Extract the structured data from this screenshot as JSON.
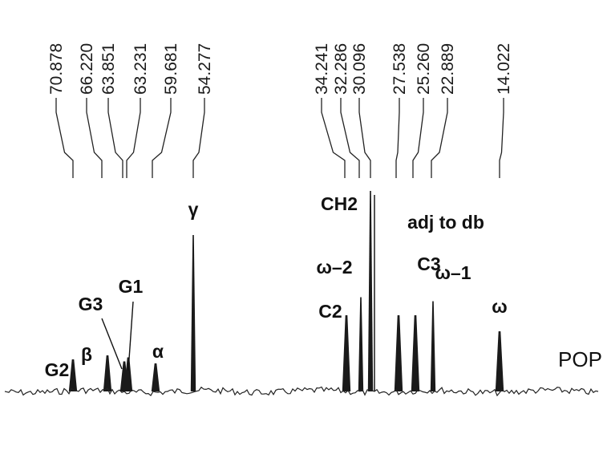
{
  "chart_data": {
    "type": "line",
    "subtype": "13C NMR spectrum (stick/peak plot)",
    "title": "",
    "xlabel": "",
    "ylabel": "",
    "x_direction": "decreasing (downfield left, upfield right)",
    "sample_label": "POP",
    "peaks": [
      {
        "label": "G2",
        "shift": 70.878,
        "intensity": 0.16
      },
      {
        "label": "β",
        "shift": 66.22,
        "intensity": 0.18
      },
      {
        "label": "G3",
        "shift": 63.851,
        "intensity": 0.15
      },
      {
        "label": "G1",
        "shift": 63.231,
        "intensity": 0.17
      },
      {
        "label": "α",
        "shift": 59.681,
        "intensity": 0.14
      },
      {
        "label": "γ",
        "shift": 54.277,
        "intensity": 0.78
      },
      {
        "label": "C2",
        "shift": 34.241,
        "intensity": 0.38
      },
      {
        "label": "ω–2",
        "shift": 32.286,
        "intensity": 0.47
      },
      {
        "label": "CH2",
        "shift": 30.096,
        "intensity": 1.0
      },
      {
        "label": "adj to db",
        "shift": 27.538,
        "intensity": 0.38
      },
      {
        "label": "C3",
        "shift": 25.26,
        "intensity": 0.38
      },
      {
        "label": "ω–1",
        "shift": 22.889,
        "intensity": 0.45
      },
      {
        "label": "ω",
        "shift": 14.022,
        "intensity": 0.3
      }
    ]
  }
}
